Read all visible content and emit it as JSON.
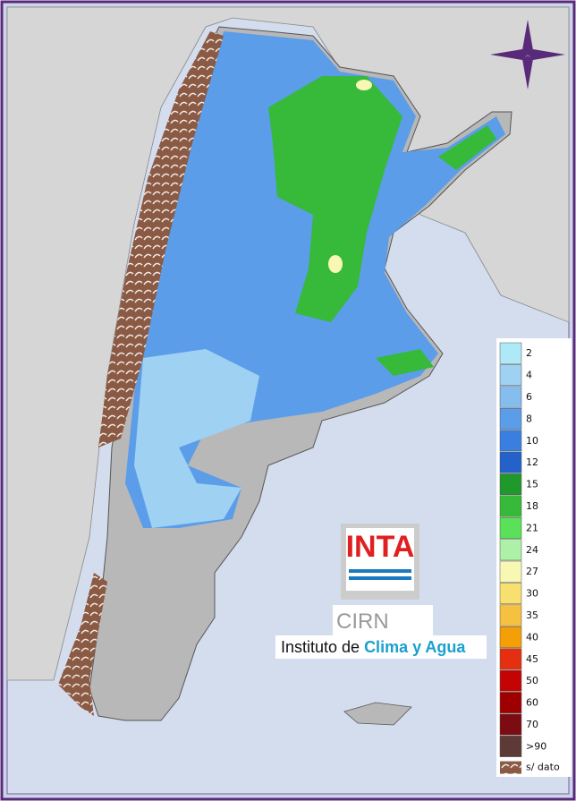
{
  "logo": {
    "inta": "INTA",
    "cirn": "CIRN",
    "institute_prefix": "Instituto de",
    "institute_highlight": "Clima y Agua"
  },
  "legend": {
    "items": [
      {
        "label": "2",
        "color": "#aee9f7"
      },
      {
        "label": "4",
        "color": "#9fd2f2"
      },
      {
        "label": "6",
        "color": "#86bdef"
      },
      {
        "label": "8",
        "color": "#5b9de9"
      },
      {
        "label": "10",
        "color": "#3a7fe0"
      },
      {
        "label": "12",
        "color": "#2462c9"
      },
      {
        "label": "15",
        "color": "#1f982c"
      },
      {
        "label": "18",
        "color": "#37b93a"
      },
      {
        "label": "21",
        "color": "#5be05a"
      },
      {
        "label": "24",
        "color": "#aef0a8"
      },
      {
        "label": "27",
        "color": "#f8f7b4"
      },
      {
        "label": "30",
        "color": "#f7df70"
      },
      {
        "label": "35",
        "color": "#f6c040"
      },
      {
        "label": "40",
        "color": "#f59f06"
      },
      {
        "label": "45",
        "color": "#e43010"
      },
      {
        "label": "50",
        "color": "#c40404"
      },
      {
        "label": "60",
        "color": "#9e0002"
      },
      {
        "label": "70",
        "color": "#7c0b12"
      },
      {
        "label": ">90",
        "color": "#5e3a36"
      }
    ],
    "no_data": "s/ dato"
  }
}
